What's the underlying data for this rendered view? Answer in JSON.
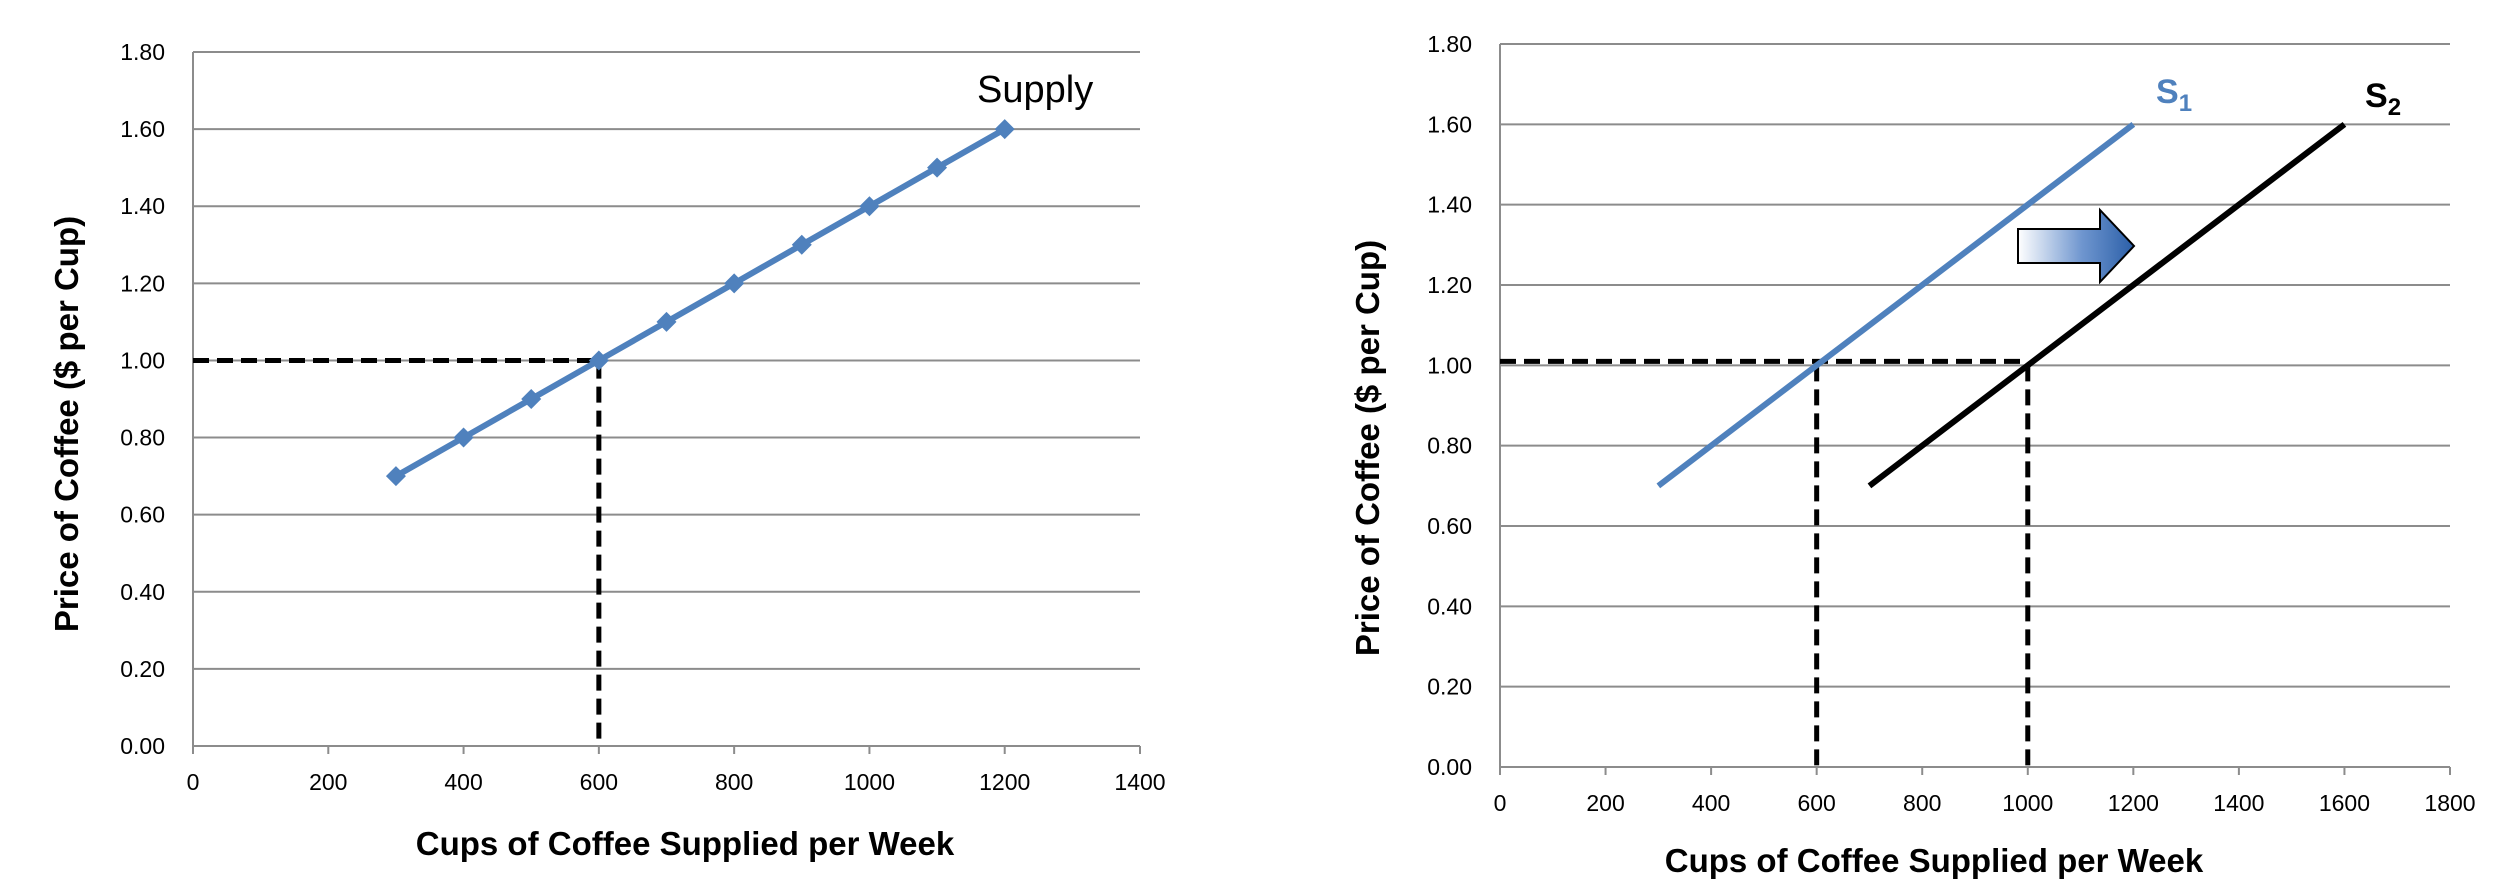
{
  "chart_data": [
    {
      "type": "line",
      "title": "",
      "xlabel": "Cups of Coffee Supplied per Week",
      "ylabel": "Price of Coffee ($ per Cup)",
      "xlim": [
        0,
        1400
      ],
      "ylim": [
        0,
        1.8
      ],
      "x_ticks": [
        "0",
        "200",
        "400",
        "600",
        "800",
        "1000",
        "1200",
        "1400"
      ],
      "y_ticks": [
        "0.00",
        "0.20",
        "0.40",
        "0.60",
        "0.80",
        "1.00",
        "1.20",
        "1.40",
        "1.60",
        "1.80"
      ],
      "grid": "horizontal",
      "series": [
        {
          "name": "Supply",
          "color": "#4F81BD",
          "markers": "diamond",
          "points": [
            [
              300,
              0.7
            ],
            [
              400,
              0.8
            ],
            [
              500,
              0.9
            ],
            [
              600,
              1.0
            ],
            [
              700,
              1.1
            ],
            [
              800,
              1.2
            ],
            [
              900,
              1.3
            ],
            [
              1000,
              1.4
            ],
            [
              1100,
              1.5
            ],
            [
              1200,
              1.6
            ]
          ]
        }
      ],
      "reference_lines": [
        {
          "style": "dashed",
          "color": "#000000",
          "points": [
            [
              0,
              1.0
            ],
            [
              600,
              1.0
            ],
            [
              600,
              0
            ]
          ]
        }
      ]
    },
    {
      "type": "line",
      "title": "",
      "xlabel": "Cups of Coffee Supplied per Week",
      "ylabel": "Price of Coffee ($ per Cup)",
      "xlim": [
        0,
        1800
      ],
      "ylim": [
        0,
        1.8
      ],
      "x_ticks": [
        "0",
        "200",
        "400",
        "600",
        "800",
        "1000",
        "1200",
        "1400",
        "1600",
        "1800"
      ],
      "y_ticks": [
        "0.00",
        "0.20",
        "0.40",
        "0.60",
        "0.80",
        "1.00",
        "1.20",
        "1.40",
        "1.60",
        "1.80"
      ],
      "grid": "horizontal",
      "series": [
        {
          "name": "S",
          "subscript": "1",
          "color": "#4F81BD",
          "points": [
            [
              300,
              0.7
            ],
            [
              1200,
              1.6
            ]
          ]
        },
        {
          "name": "S",
          "subscript": "2",
          "color": "#000000",
          "points": [
            [
              700,
              0.7
            ],
            [
              1600,
              1.6
            ]
          ]
        }
      ],
      "reference_lines": [
        {
          "style": "dashed",
          "color": "#000000",
          "points": [
            [
              0,
              1.01
            ],
            [
              1000,
              1.01
            ]
          ]
        },
        {
          "style": "dashed",
          "color": "#000000",
          "points": [
            [
              600,
              1.0
            ],
            [
              600,
              0
            ]
          ]
        },
        {
          "style": "dashed",
          "color": "#000000",
          "points": [
            [
              1000,
              1.0
            ],
            [
              1000,
              0
            ]
          ]
        }
      ],
      "annotations": [
        {
          "kind": "shift-arrow",
          "direction": "right",
          "color": "#3366AA"
        }
      ]
    }
  ]
}
